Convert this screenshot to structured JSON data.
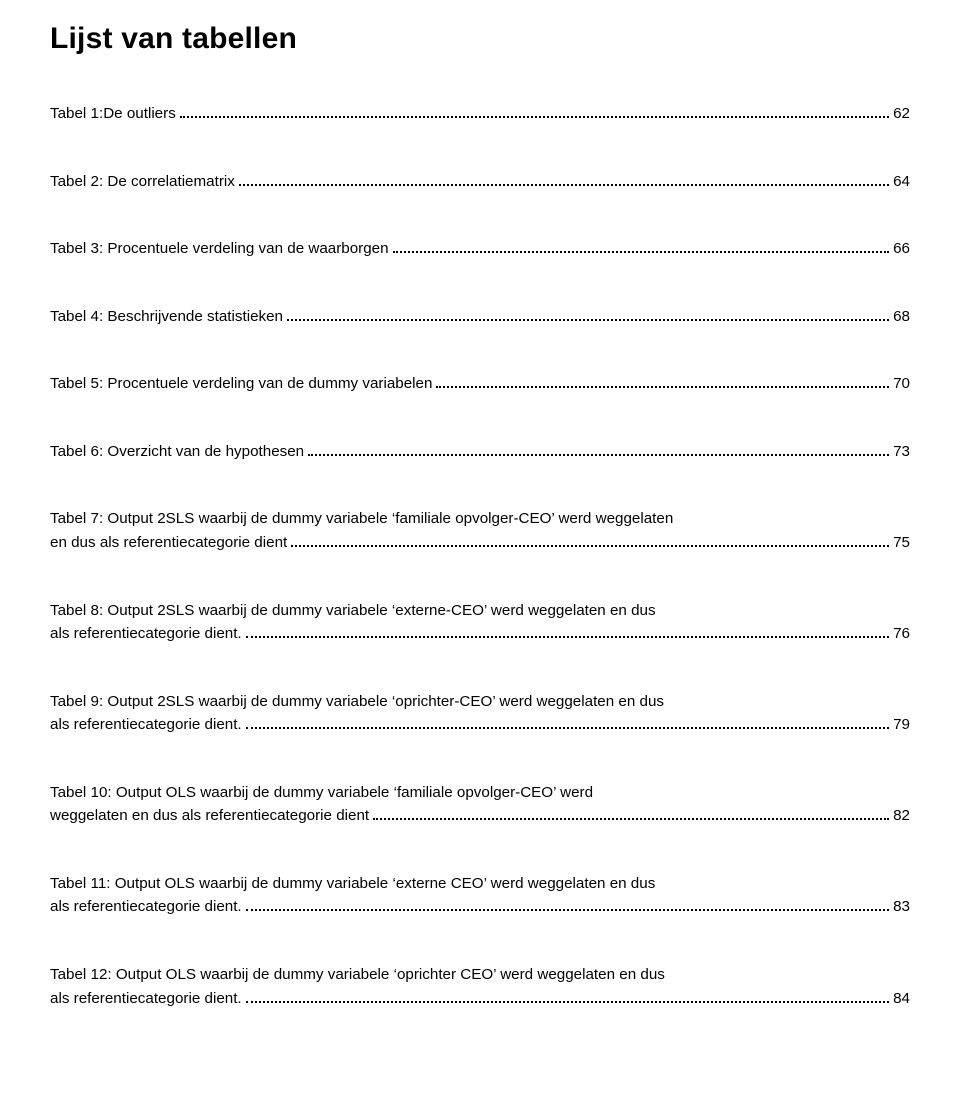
{
  "title": "Lijst van tabellen",
  "entries": [
    {
      "text": "Tabel 1:De outliers",
      "page": "62"
    },
    {
      "text": "Tabel 2: De correlatiematrix",
      "page": "64"
    },
    {
      "text": "Tabel 3: Procentuele verdeling van de waarborgen",
      "page": "66"
    },
    {
      "text": "Tabel 4: Beschrijvende statistieken",
      "page": "68"
    },
    {
      "text": "Tabel 5: Procentuele verdeling van de dummy variabelen",
      "page": "70"
    },
    {
      "text": "Tabel 6: Overzicht van de hypothesen",
      "page": "73"
    },
    {
      "pre": "Tabel 7: Output 2SLS waarbij de dummy  variabele ‘familiale opvolger-CEO’ werd weggelaten",
      "last": "en dus als referentiecategorie dient",
      "page": "75"
    },
    {
      "pre": "Tabel 8: Output  2SLS waarbij de dummy variabele ‘externe-CEO’ werd weggelaten en dus",
      "last": "als referentiecategorie dient.",
      "page": "76"
    },
    {
      "pre": "Tabel 9: Output  2SLS  waarbij de dummy  variabele ‘oprichter-CEO’ werd weggelaten en dus",
      "last": "als referentiecategorie dient.",
      "page": "79"
    },
    {
      "pre": "Tabel 10: Output OLS  waarbij de dummy  variabele ‘familiale opvolger-CEO’ werd",
      "last": "weggelaten en dus als referentiecategorie dient",
      "page": "82"
    },
    {
      "pre": "Tabel 11: Output OLS waarbij de dummy variabele ‘externe CEO’ werd weggelaten en dus",
      "last": "als referentiecategorie dient.",
      "page": "83"
    },
    {
      "pre": "Tabel 12: Output OLS waarbij de dummy variabele ‘oprichter CEO’ werd weggelaten en dus",
      "last": "als referentiecategorie dient.",
      "page": "84"
    }
  ]
}
